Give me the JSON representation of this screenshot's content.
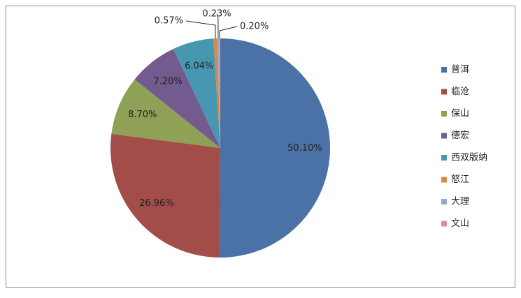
{
  "chart_data": {
    "type": "pie",
    "categories": [
      "普洱",
      "临沧",
      "保山",
      "德宏",
      "西双版纳",
      "怒江",
      "大理",
      "文山"
    ],
    "values": [
      50.1,
      26.96,
      8.7,
      7.2,
      6.04,
      0.57,
      0.23,
      0.2
    ],
    "value_labels": [
      "50.10%",
      "26.96%",
      "8.70%",
      "7.20%",
      "6.04%",
      "0.57%",
      "0.23%",
      "0.20%"
    ],
    "colors": [
      "#4a72a6",
      "#a24d4a",
      "#8ea156",
      "#735a8f",
      "#4897b0",
      "#d88a47",
      "#93a9cf",
      "#d29494"
    ],
    "legend": "right"
  }
}
